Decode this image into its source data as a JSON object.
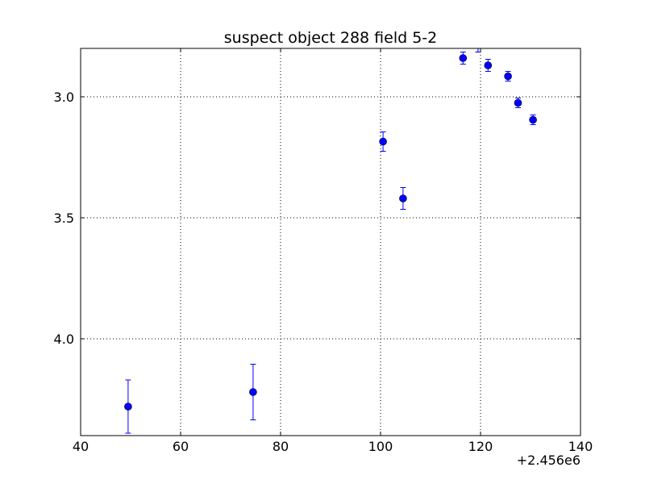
{
  "chart_data": {
    "type": "scatter",
    "title": "suspect object 288 field 5-2",
    "xlabel": "",
    "ylabel": "",
    "x_offset_label": "+2.456e6",
    "xlim": [
      40,
      140
    ],
    "ylim": [
      4.4,
      2.8
    ],
    "y_inverted": true,
    "grid": true,
    "x_ticks": [
      40,
      60,
      80,
      100,
      120,
      140
    ],
    "x_tick_labels": [
      "40",
      "60",
      "80",
      "100",
      "120",
      "140"
    ],
    "y_ticks": [
      3.0,
      3.5,
      4.0
    ],
    "y_tick_labels": [
      "3.0",
      "3.5",
      "4.0"
    ],
    "marker_color": "#0000ff",
    "points": [
      {
        "x": 49.5,
        "y": 4.28,
        "err": 0.11
      },
      {
        "x": 74.5,
        "y": 4.22,
        "err": 0.115
      },
      {
        "x": 100.5,
        "y": 3.185,
        "err": 0.04
      },
      {
        "x": 104.5,
        "y": 3.42,
        "err": 0.045
      },
      {
        "x": 116.5,
        "y": 2.84,
        "err": 0.025
      },
      {
        "x": 119.5,
        "y": 2.785,
        "err": 0.03
      },
      {
        "x": 121.5,
        "y": 2.87,
        "err": 0.025
      },
      {
        "x": 125.5,
        "y": 2.915,
        "err": 0.02
      },
      {
        "x": 127.5,
        "y": 3.025,
        "err": 0.02
      },
      {
        "x": 130.5,
        "y": 3.095,
        "err": 0.02
      }
    ]
  }
}
